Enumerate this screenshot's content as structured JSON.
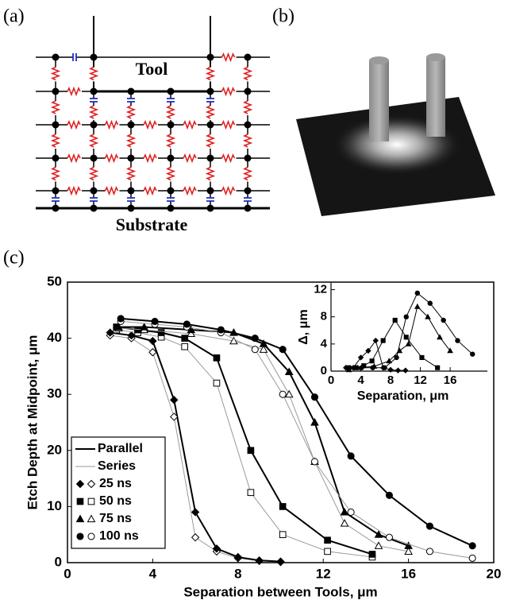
{
  "panels": {
    "a": {
      "label": "(a)",
      "tool": "Tool",
      "substrate": "Substrate"
    },
    "b": {
      "label": "(b)"
    },
    "c": {
      "label": "(c)"
    }
  },
  "chart_data": [
    {
      "type": "line",
      "xlabel": "Separation between Tools, μm",
      "ylabel": "Etch Depth at Midpoint, μm",
      "xlim": [
        0,
        20
      ],
      "ylim": [
        0,
        50
      ],
      "xticks": [
        0,
        4,
        8,
        12,
        16,
        20
      ],
      "yticks": [
        0,
        10,
        20,
        30,
        40,
        50
      ],
      "legend": "lower left",
      "styles": [
        {
          "name": "Parallel",
          "color": "#000000"
        },
        {
          "name": "Series",
          "color": "#999999"
        }
      ],
      "series": [
        {
          "name": "25 ns",
          "marker": "diamond",
          "x": [
            2,
            3,
            4,
            5,
            6,
            7,
            8,
            9,
            10
          ],
          "parallel_values": [
            41,
            40.5,
            39.5,
            29,
            9,
            2.5,
            1,
            0.4,
            0.2
          ],
          "series_values": [
            40.5,
            40,
            37.5,
            26,
            4.5,
            2,
            0.8,
            0.3,
            0.1
          ]
        },
        {
          "name": "50 ns",
          "marker": "square",
          "x": [
            2.3,
            3.3,
            4.4,
            5.5,
            7,
            8.6,
            10.1,
            12.2,
            14.3
          ],
          "parallel_values": [
            42,
            41.5,
            41,
            40,
            36.5,
            20,
            10,
            4,
            1.5
          ],
          "series_values": [
            41.5,
            41,
            40.2,
            38.5,
            32,
            12.5,
            5,
            2,
            1
          ]
        },
        {
          "name": "75 ns",
          "marker": "triangle",
          "x": [
            2.4,
            3.6,
            5.8,
            7.8,
            9.2,
            10.4,
            11.6,
            13,
            14.6,
            16
          ],
          "parallel_values": [
            42,
            42,
            41.5,
            41,
            39,
            34,
            25,
            9,
            5,
            3
          ],
          "series_values": [
            41.8,
            41.5,
            40.8,
            39.5,
            38,
            30,
            18,
            7,
            3,
            2
          ]
        },
        {
          "name": "100 ns",
          "marker": "circle",
          "x": [
            2.5,
            4.1,
            5.6,
            7.2,
            8.8,
            10.1,
            11.6,
            13.3,
            15.1,
            17,
            19
          ],
          "parallel_values": [
            43.5,
            43,
            42.5,
            41.5,
            40,
            38,
            29.5,
            19,
            12,
            6.5,
            3
          ],
          "series_values": [
            43,
            42.5,
            42,
            41,
            38,
            30,
            18,
            9,
            4.5,
            2,
            0.8
          ]
        }
      ]
    },
    {
      "type": "line",
      "xlabel": "Separation, μm",
      "ylabel": "Δ, μm",
      "xlim": [
        0,
        21
      ],
      "ylim": [
        0,
        13
      ],
      "xticks": [
        0,
        4,
        8,
        12,
        16
      ],
      "yticks": [
        0,
        4,
        8,
        12
      ],
      "color": "#000000",
      "series": [
        {
          "marker": "diamond",
          "x": [
            2,
            3,
            4,
            5,
            6,
            7,
            8,
            9,
            10
          ],
          "values": [
            0.5,
            0.5,
            2,
            3,
            4.5,
            0.5,
            0.2,
            0.1,
            0.1
          ]
        },
        {
          "marker": "square",
          "x": [
            2.3,
            3.3,
            4.4,
            5.5,
            7,
            8.6,
            10.1,
            12.2,
            14.3
          ],
          "values": [
            0.5,
            0.5,
            0.8,
            1.5,
            4.5,
            7.5,
            5,
            2,
            0.5
          ]
        },
        {
          "marker": "triangle",
          "x": [
            2.4,
            3.6,
            5.8,
            7.8,
            9.2,
            10.4,
            11.6,
            13,
            14.6,
            16
          ],
          "values": [
            0.2,
            0.5,
            0.7,
            1.5,
            3,
            4,
            9.5,
            8,
            5,
            3
          ]
        },
        {
          "marker": "circle",
          "x": [
            2.5,
            4.1,
            5.6,
            7.2,
            8.8,
            10.1,
            11.6,
            13.3,
            15.1,
            17,
            19
          ],
          "values": [
            0.5,
            0.5,
            0.5,
            0.5,
            2,
            8,
            11.5,
            10,
            7.5,
            4.5,
            2.5
          ]
        }
      ]
    }
  ]
}
